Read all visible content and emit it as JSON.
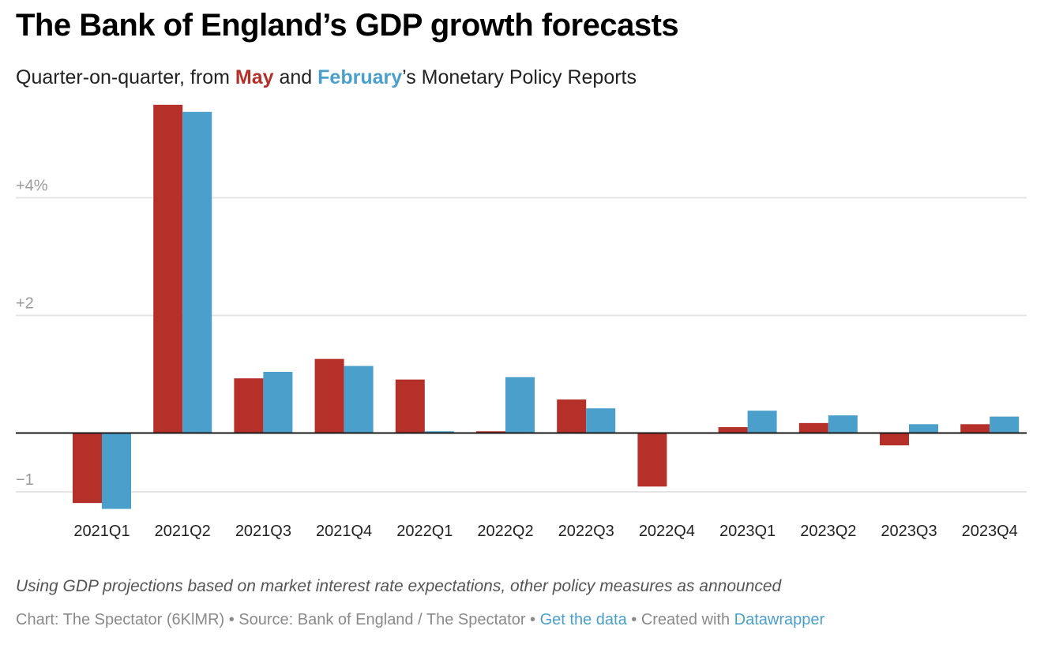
{
  "title": "The Bank of England’s GDP growth forecasts",
  "subtitle": {
    "prefix": "Quarter-on-quarter, from ",
    "may": "May",
    "middle": " and ",
    "february": "February",
    "suffix": "’s Monetary Policy Reports"
  },
  "colors": {
    "may": "#b6302a",
    "february": "#4a9fcb",
    "gridline": "#e5e5e5",
    "baseline": "#1a1a1a"
  },
  "chart_data": {
    "type": "bar",
    "title": "The Bank of England’s GDP growth forecasts",
    "subtitle": "Quarter-on-quarter, from May and February’s Monetary Policy Reports",
    "xlabel": "",
    "ylabel": "",
    "unit": "%",
    "ylim": [
      -1.3,
      5.6
    ],
    "grid": true,
    "legend": "in-subtitle",
    "yticks": [
      {
        "value": 4,
        "label": "+4%"
      },
      {
        "value": 2,
        "label": "+2"
      },
      {
        "value": -1,
        "label": "−1"
      }
    ],
    "categories": [
      "2021Q1",
      "2021Q2",
      "2021Q3",
      "2021Q4",
      "2022Q1",
      "2022Q2",
      "2022Q3",
      "2022Q4",
      "2023Q1",
      "2023Q2",
      "2023Q3",
      "2023Q4"
    ],
    "series": [
      {
        "name": "May",
        "color": "#b6302a",
        "values": [
          -1.19,
          5.58,
          0.93,
          1.26,
          0.91,
          0.03,
          0.57,
          -0.91,
          0.1,
          0.17,
          -0.21,
          0.15
        ]
      },
      {
        "name": "February",
        "color": "#4a9fcb",
        "values": [
          -1.29,
          5.46,
          1.04,
          1.14,
          0.03,
          0.95,
          0.42,
          0.0,
          0.38,
          0.3,
          0.15,
          0.28
        ]
      }
    ]
  },
  "note": "Using GDP projections based on market interest rate expectations, other policy measures as announced",
  "footer": {
    "chart_credit": "Chart: The Spectator (6KlMR)",
    "separator": " • ",
    "source": "Source: Bank of England / The Spectator",
    "get_data": "Get the data",
    "created_with": "Created with ",
    "datawrapper": "Datawrapper"
  }
}
